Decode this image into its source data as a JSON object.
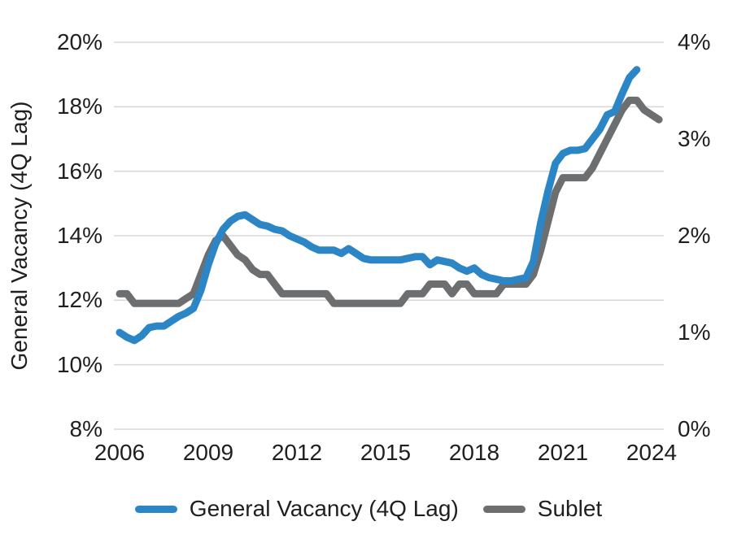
{
  "chart_data": {
    "type": "line",
    "title": "",
    "grid": "horizontal",
    "y_left": {
      "title": "General Vacancy (4Q Lag)",
      "range": [
        8,
        20
      ],
      "ticks": [
        {
          "label": "20%",
          "value": 20
        },
        {
          "label": "18%",
          "value": 18
        },
        {
          "label": "16%",
          "value": 16
        },
        {
          "label": "14%",
          "value": 14
        },
        {
          "label": "12%",
          "value": 12
        },
        {
          "label": "10%",
          "value": 10
        },
        {
          "label": "8%",
          "value": 8
        }
      ]
    },
    "y_right": {
      "title": "",
      "range": [
        0,
        4
      ],
      "ticks": [
        {
          "label": "4%",
          "value": 4
        },
        {
          "label": "3%",
          "value": 3
        },
        {
          "label": "2%",
          "value": 2
        },
        {
          "label": "1%",
          "value": 1
        },
        {
          "label": "0%",
          "value": 0
        }
      ]
    },
    "x_axis": {
      "range": [
        2006,
        2024.9
      ],
      "ticks": [
        {
          "label": "2006",
          "value": 2006
        },
        {
          "label": "2009",
          "value": 2009
        },
        {
          "label": "2012",
          "value": 2012
        },
        {
          "label": "2015",
          "value": 2015
        },
        {
          "label": "2018",
          "value": 2018
        },
        {
          "label": "2021",
          "value": 2021
        },
        {
          "label": "2024",
          "value": 2024
        }
      ]
    },
    "legend_position": "bottom",
    "series": [
      {
        "name": "General Vacancy (4Q Lag)",
        "axis": "left",
        "color": "#2c86c5",
        "x_start": 2006.0,
        "x_step_years": 0.25,
        "values": [
          11.0,
          10.85,
          10.75,
          10.9,
          11.15,
          11.2,
          11.2,
          11.35,
          11.5,
          11.6,
          11.75,
          12.3,
          13.1,
          13.75,
          14.2,
          14.45,
          14.6,
          14.65,
          14.5,
          14.35,
          14.3,
          14.2,
          14.15,
          14.0,
          13.9,
          13.8,
          13.65,
          13.55,
          13.55,
          13.55,
          13.45,
          13.6,
          13.45,
          13.3,
          13.25,
          13.25,
          13.25,
          13.25,
          13.25,
          13.3,
          13.35,
          13.35,
          13.1,
          13.25,
          13.2,
          13.15,
          13.0,
          12.9,
          13.0,
          12.8,
          12.7,
          12.65,
          12.6,
          12.6,
          12.65,
          12.7,
          13.2,
          14.4,
          15.4,
          16.25,
          16.55,
          16.65,
          16.65,
          16.7,
          17.0,
          17.3,
          17.75,
          17.85,
          18.4,
          18.9,
          19.15
        ]
      },
      {
        "name": "Sublet",
        "axis": "right",
        "color": "#6d6e70",
        "x_start": 2006.0,
        "x_step_years": 0.25,
        "values": [
          1.4,
          1.4,
          1.3,
          1.3,
          1.3,
          1.3,
          1.3,
          1.3,
          1.3,
          1.35,
          1.4,
          1.6,
          1.8,
          1.95,
          2.0,
          1.9,
          1.8,
          1.75,
          1.65,
          1.6,
          1.6,
          1.5,
          1.4,
          1.4,
          1.4,
          1.4,
          1.4,
          1.4,
          1.4,
          1.3,
          1.3,
          1.3,
          1.3,
          1.3,
          1.3,
          1.3,
          1.3,
          1.3,
          1.3,
          1.4,
          1.4,
          1.4,
          1.5,
          1.5,
          1.5,
          1.4,
          1.5,
          1.5,
          1.4,
          1.4,
          1.4,
          1.4,
          1.5,
          1.5,
          1.5,
          1.5,
          1.6,
          1.85,
          2.15,
          2.45,
          2.6,
          2.6,
          2.6,
          2.6,
          2.7,
          2.85,
          3.0,
          3.15,
          3.3,
          3.4,
          3.4,
          3.3,
          3.25,
          3.2
        ]
      }
    ],
    "colors": {
      "gridline": "#d9d9d9",
      "text": "#1f1f1f",
      "general_vacancy_line": "#2c86c5",
      "sublet_line": "#6d6e70"
    }
  }
}
